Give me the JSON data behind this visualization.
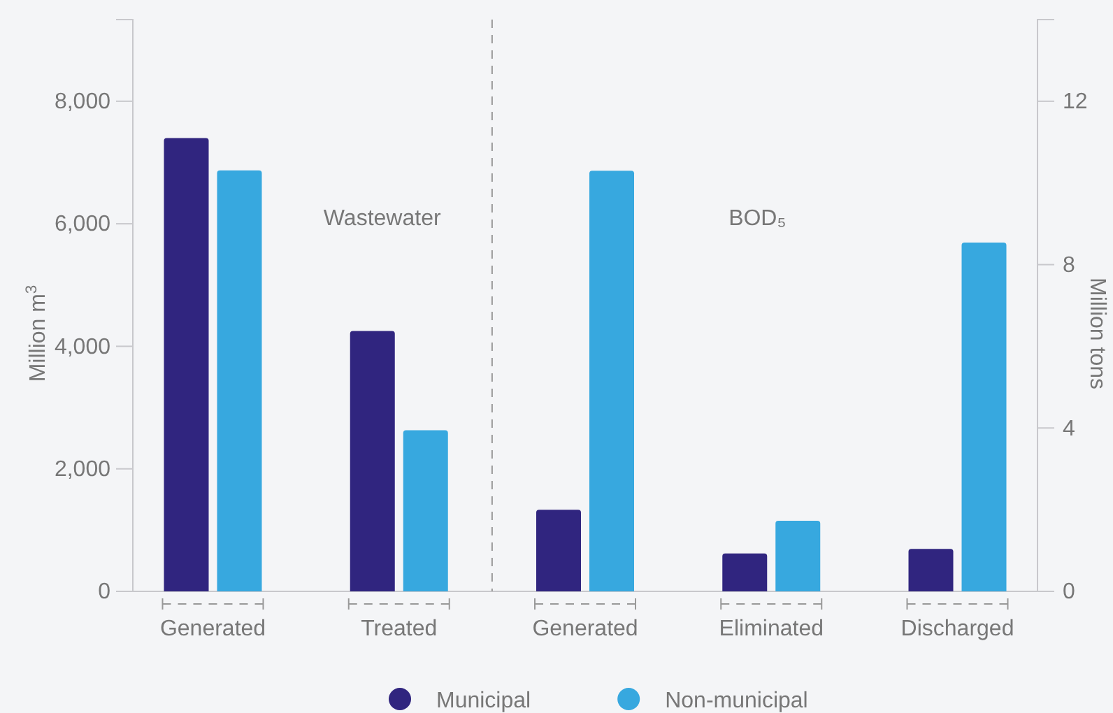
{
  "chart_data": {
    "type": "bar",
    "categories": [
      "Generated",
      "Treated",
      "Generated",
      "Eliminated",
      "Discharged"
    ],
    "series": [
      {
        "name": "Municipal",
        "color": "#30257f",
        "values": [
          7400,
          4250,
          null,
          null,
          null
        ]
      },
      {
        "name": "Non-municipal",
        "color": "#37a8df",
        "values": [
          6870,
          2630,
          null,
          null,
          null
        ]
      },
      {
        "color": "#30257f",
        "axis": "y2",
        "values": [
          null,
          null,
          2.0,
          0.93,
          1.04
        ]
      },
      {
        "color": "#37a8df",
        "axis": "y2",
        "values": [
          null,
          null,
          10.3,
          1.73,
          8.54
        ]
      }
    ],
    "ylabel": "Million m$^{3}$",
    "y2label": "Million tons",
    "ylim": [
      0,
      9333
    ],
    "yticks": [
      {
        "value": 0,
        "label": "0"
      },
      {
        "value": 2000,
        "label": "2,000"
      },
      {
        "value": 4000,
        "label": "4,000"
      },
      {
        "value": 6000,
        "label": "6,000"
      },
      {
        "value": 8000,
        "label": "8,000"
      }
    ],
    "y2lim": [
      0,
      14
    ],
    "y2ticks": [
      0,
      4,
      8,
      12
    ],
    "annotations": [
      "Wastewater",
      "BOD₅"
    ],
    "legend": "bottom",
    "grid": false
  }
}
